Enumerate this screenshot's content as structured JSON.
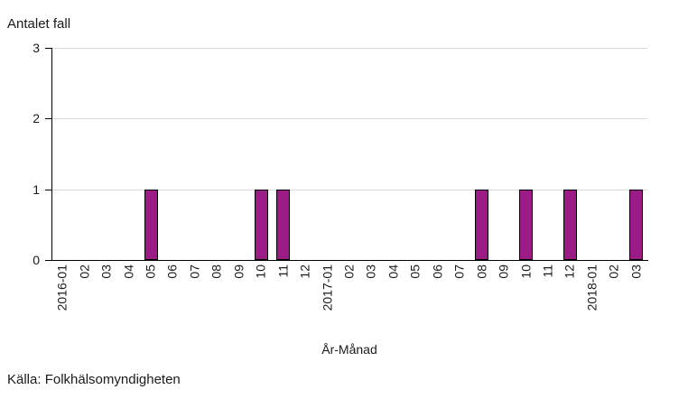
{
  "chart_data": {
    "type": "bar",
    "title": "Antalet fall",
    "xlabel": "År-Månad",
    "source": "Källa: Folkhälsomyndigheten",
    "categories": [
      "2016-01",
      "02",
      "03",
      "04",
      "05",
      "06",
      "07",
      "08",
      "09",
      "10",
      "11",
      "12",
      "2017-01",
      "02",
      "03",
      "04",
      "05",
      "06",
      "07",
      "08",
      "09",
      "10",
      "11",
      "12",
      "2018-01",
      "02",
      "03"
    ],
    "values": [
      0,
      0,
      0,
      0,
      1,
      0,
      0,
      0,
      0,
      1,
      1,
      0,
      0,
      0,
      0,
      0,
      0,
      0,
      0,
      1,
      0,
      1,
      0,
      1,
      0,
      0,
      1
    ],
    "yticks": [
      0,
      1,
      2,
      3
    ],
    "ylim": [
      0,
      3
    ],
    "grid": "horizontal",
    "legend": "none",
    "bar_color": "#9b1b87",
    "bar_border_color": "#000000",
    "gridline_color": "#d9d9d9",
    "axis_color": "#000000",
    "text_color": "#1a1a1a"
  }
}
